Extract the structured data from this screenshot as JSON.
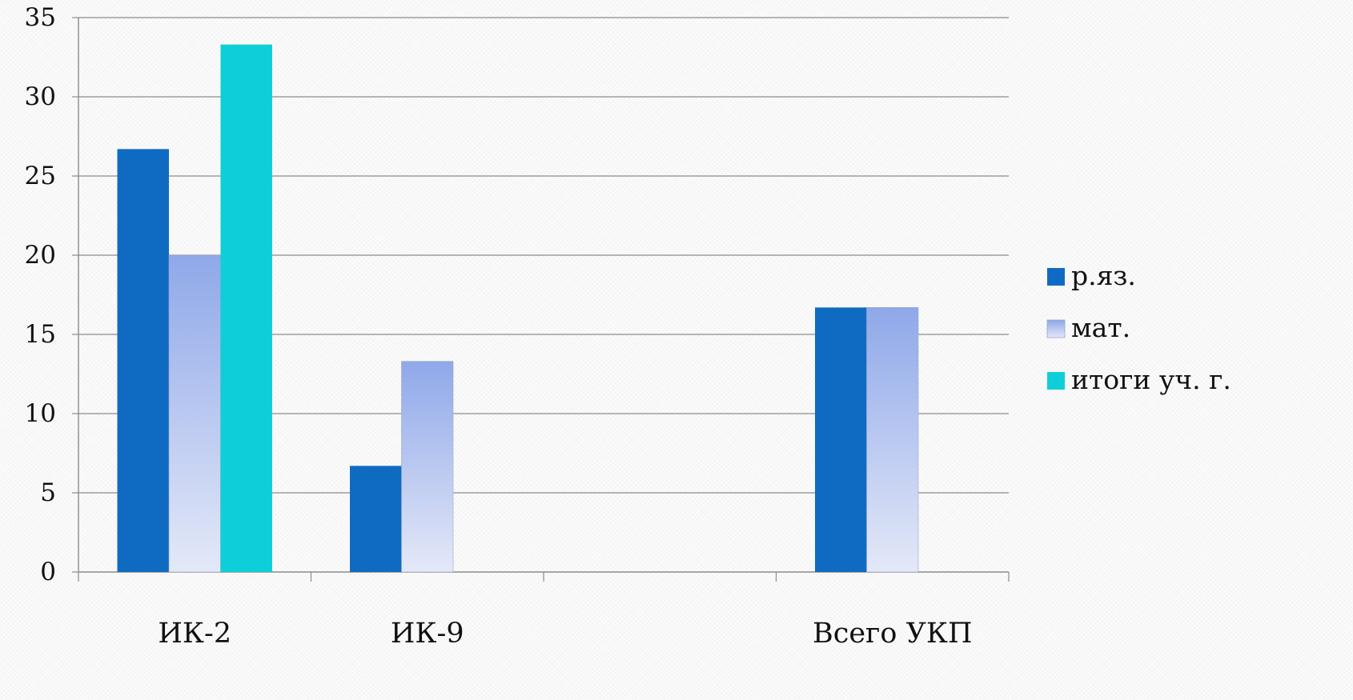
{
  "chart_data": {
    "type": "bar",
    "categories": [
      "ИК-2",
      "ИК-9",
      "",
      "Всего УКП"
    ],
    "series": [
      {
        "name": "р.яз.",
        "values": [
          26.7,
          6.7,
          null,
          16.7
        ],
        "color": "#0f6bc2",
        "fill": "solid"
      },
      {
        "name": "мат.",
        "values": [
          20.0,
          13.3,
          null,
          16.7
        ],
        "color": "#8fa8e9",
        "color_light": "#e4e9f8",
        "fill": "gradient"
      },
      {
        "name": "итоги уч. г.",
        "values": [
          33.3,
          null,
          null,
          null
        ],
        "color": "#0ecfd9",
        "fill": "solid"
      }
    ],
    "ylim": [
      0,
      35
    ],
    "yticks": [
      "0",
      "5",
      "10",
      "15",
      "20",
      "25",
      "30",
      "35"
    ],
    "ytick_values": [
      0,
      5,
      10,
      15,
      20,
      25,
      30,
      35
    ],
    "grid": true,
    "legend_position": "right",
    "title": "",
    "xlabel": "",
    "ylabel": ""
  }
}
